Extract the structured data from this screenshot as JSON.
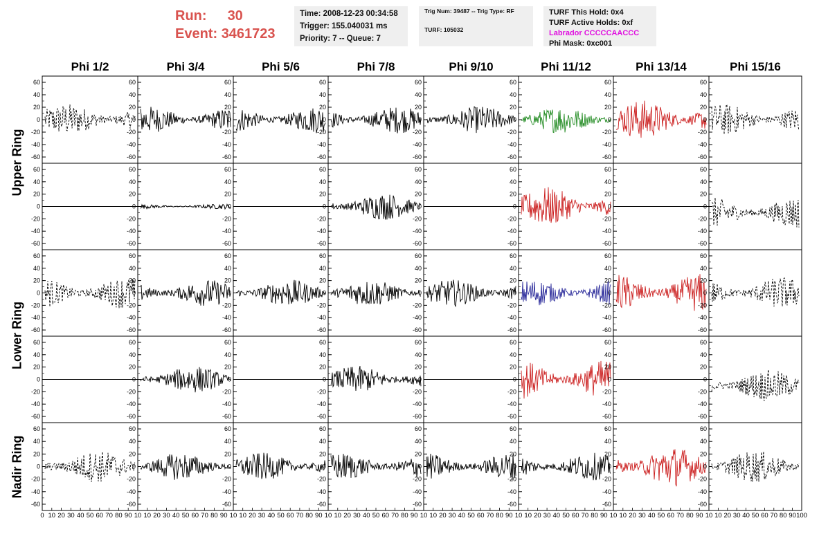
{
  "header": {
    "run_label": "Run:",
    "run_value": "30",
    "event_label": "Event:",
    "event_value": "3461723"
  },
  "info_panel_1": {
    "time": "Time: 2008-12-23 00:34:58",
    "trigger": "Trigger: 155.040031 ms",
    "priority": "Priority: 7 -- Queue: 7"
  },
  "info_panel_2": {
    "trig": "Trig Num: 39487 -- Trig Type: RF",
    "turf": "TURF: 105032"
  },
  "info_panel_3": {
    "this_hold": "TURF This Hold: 0x4",
    "active_holds": "TURF Active Holds: 0xf",
    "labrador": "Labrador CCCCCAACCC",
    "phi_mask": "Phi Mask: 0xc001"
  },
  "phi_headers": [
    "Phi 1/2",
    "Phi 3/4",
    "Phi 5/6",
    "Phi 7/8",
    "Phi 9/10",
    "Phi 11/12",
    "Phi 13/14",
    "Phi 15/16"
  ],
  "ring_labels": {
    "upper": "Upper Ring",
    "lower": "Lower Ring",
    "nadir": "Nadir Ring"
  },
  "colors": {
    "black": "#000000",
    "green": "#228b22",
    "red": "#cc2222",
    "blue": "#2a2a9a",
    "run_text": "#d9534f",
    "labrador": "#e010e0"
  },
  "y_ticks": [
    "60",
    "40",
    "20",
    "0",
    "-20",
    "-40",
    "-60"
  ],
  "x_tick_first": "0",
  "x_tick_middle": "10 20 30 40 50 60 70 80 90",
  "x_tick_last_col_end": "100",
  "x_tick_col_end": "10",
  "chart_data": {
    "type": "line",
    "x_range": [
      0,
      100
    ],
    "y_range": [
      -70,
      70
    ],
    "rows": 5,
    "cols": 8,
    "panels": [
      [
        "dashed",
        "solid",
        "solid",
        "solid",
        "solid",
        "green",
        "red",
        "dashed"
      ],
      [
        "flat",
        "small",
        "flat",
        "solid",
        "flat",
        "red",
        "flat",
        "dashed"
      ],
      [
        "dashed",
        "solid",
        "solid",
        "solid",
        "solid",
        "blue",
        "red",
        "dashed"
      ],
      [
        "flat",
        "solid",
        "flat",
        "solid",
        "flat",
        "red",
        "flat",
        "dashed"
      ],
      [
        "dashed",
        "solid",
        "solid",
        "solid",
        "solid",
        "solid",
        "red",
        "dashed"
      ]
    ]
  }
}
